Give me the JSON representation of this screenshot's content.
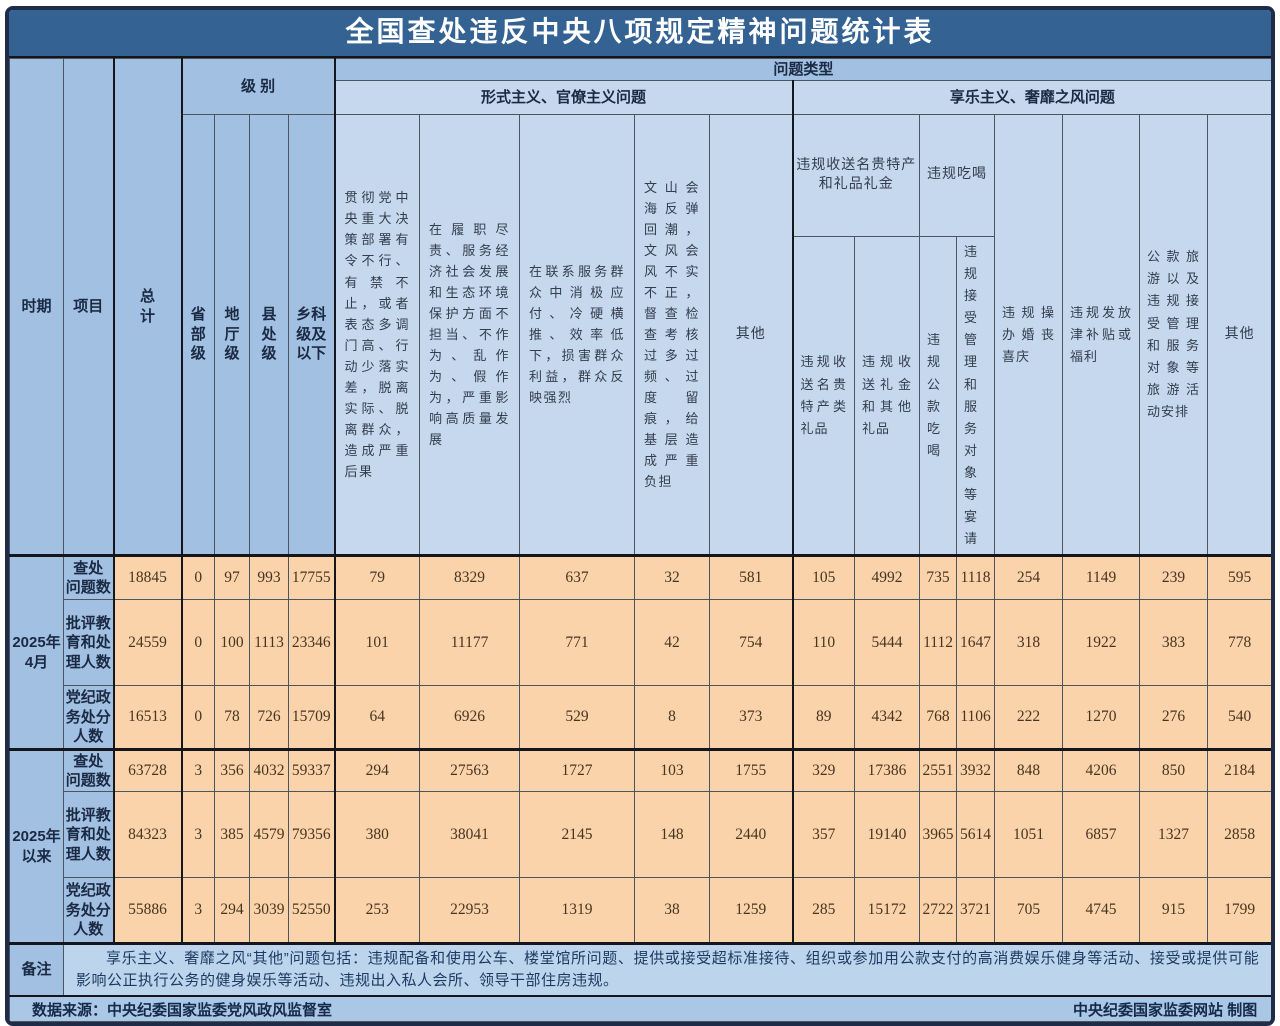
{
  "title": "全国查处违反中央八项规定精神问题统计表",
  "colors": {
    "frame": "#1e2c49",
    "title_bg": "#336293",
    "header_blue": "#a2c0e1",
    "header_light_blue": "#c6d8ed",
    "data_bg": "#fbd3ab",
    "note_bg": "#bdd5ec",
    "source_bg": "#aac7e5"
  },
  "header": {
    "period_label": "时期",
    "item_label": "项目",
    "total_label": "总\n计",
    "level_label": "级 别",
    "problem_type_label": "问题类型",
    "formalism_label": "形式主义、官僚主义问题",
    "hedonism_label": "享乐主义、奢靡之风问题",
    "levels": [
      "省\n部\n级",
      "地\n厅\n级",
      "县\n处\n级",
      "乡科\n级及\n以下"
    ],
    "formalism_cols": [
      "贯彻党中央重大决策部署有令不行、有禁不止，或者表态多调门高、行动少落实差，脱离实际、脱离群众，造成严重后果",
      "在履职尽责、服务经济社会发展和生态环境保护方面不担当、不作为、乱作为、假作为，严重影响高质量发展",
      "在联系服务群众中消极应付、冷硬横推、效率低下，损害群众利益，群众反映强烈",
      "文山会海反弹回潮，文风会风不实不正，督查检查考核过多过频、过度留痕，给基层造成严重负担",
      "其他"
    ],
    "hedonism_cols": {
      "gifts_group": "违规收送名贵特产和礼品礼金",
      "gifts_sub": [
        "违规收送名贵特产类礼品",
        "违规收送礼金和其他礼品"
      ],
      "dining_group": "违规吃喝",
      "dining_sub": [
        "违规公款吃喝",
        "违规接受管理和服务对象等宴请"
      ],
      "wedding": "违规操办婚丧喜庆",
      "allowance": "违规发放津补贴或福利",
      "travel": "公款旅游以及违规接受管理和服务对象等旅游活动安排",
      "other": "其他"
    }
  },
  "body": {
    "periods": [
      {
        "label": "2025年\n4月",
        "rows": [
          {
            "label": "查处\n问题数",
            "values": [
              18845,
              0,
              97,
              993,
              17755,
              79,
              8329,
              637,
              32,
              581,
              105,
              4992,
              735,
              1118,
              254,
              1149,
              239,
              595
            ]
          },
          {
            "label": "批评教\n育和处\n理人数",
            "values": [
              24559,
              0,
              100,
              1113,
              23346,
              101,
              11177,
              771,
              42,
              754,
              110,
              5444,
              1112,
              1647,
              318,
              1922,
              383,
              778
            ]
          },
          {
            "label": "党纪政\n务处分\n人数",
            "values": [
              16513,
              0,
              78,
              726,
              15709,
              64,
              6926,
              529,
              8,
              373,
              89,
              4342,
              768,
              1106,
              222,
              1270,
              276,
              540
            ]
          }
        ]
      },
      {
        "label": "2025年\n以来",
        "rows": [
          {
            "label": "查处\n问题数",
            "values": [
              63728,
              3,
              356,
              4032,
              59337,
              294,
              27563,
              1727,
              103,
              1755,
              329,
              17386,
              2551,
              3932,
              848,
              4206,
              850,
              2184
            ]
          },
          {
            "label": "批评教\n育和处\n理人数",
            "values": [
              84323,
              3,
              385,
              4579,
              79356,
              380,
              38041,
              2145,
              148,
              2440,
              357,
              19140,
              3965,
              5614,
              1051,
              6857,
              1327,
              2858
            ]
          },
          {
            "label": "党纪政\n务处分\n人数",
            "values": [
              55886,
              3,
              294,
              3039,
              52550,
              253,
              22953,
              1319,
              38,
              1259,
              285,
              15172,
              2722,
              3721,
              705,
              4745,
              915,
              1799
            ]
          }
        ]
      }
    ]
  },
  "footer": {
    "note_label": "备注",
    "note": "享乐主义、奢靡之风“其他”问题包括：违规配备和使用公车、楼堂馆所问题、提供或接受超标准接待、组织或参加用公款支付的高消费娱乐健身等活动、接受或提供可能影响公正执行公务的健身娱乐等活动、违规出入私人会所、领导干部住房违规。",
    "source_left": "数据来源：中央纪委国家监委党风政风监督室",
    "source_right": "中央纪委国家监委网站 制图"
  },
  "chart_data": {
    "type": "table",
    "title": "全国查处违反中央八项规定精神问题统计表",
    "row_header_columns": [
      "时期",
      "项目"
    ],
    "columns": [
      "总计",
      "省部级",
      "地厅级",
      "县处级",
      "乡科级及以下",
      "形式主义、官僚主义问题：贯彻党中央重大决策部署有令不行、有禁不止，或者表态多调门高、行动少落实差，脱离实际、脱离群众，造成严重后果",
      "形式主义、官僚主义问题：在履职尽责、服务经济社会发展和生态环境保护方面不担当、不作为、乱作为、假作为，严重影响高质量发展",
      "形式主义、官僚主义问题：在联系服务群众中消极应付、冷硬横推、效率低下，损害群众利益，群众反映强烈",
      "形式主义、官僚主义问题：文山会海反弹回潮，文风会风不实不正，督查检查考核过多过频、过度留痕，给基层造成严重负担",
      "形式主义、官僚主义问题：其他",
      "享乐主义、奢靡之风问题：违规收送名贵特产类礼品",
      "享乐主义、奢靡之风问题：违规收送礼金和其他礼品",
      "享乐主义、奢靡之风问题：违规公款吃喝",
      "享乐主义、奢靡之风问题：违规接受管理和服务对象等宴请",
      "享乐主义、奢靡之风问题：违规操办婚丧喜庆",
      "享乐主义、奢靡之风问题：违规发放津补贴或福利",
      "享乐主义、奢靡之风问题：公款旅游以及违规接受管理和服务对象等旅游活动安排",
      "享乐主义、奢靡之风问题：其他"
    ],
    "rows": [
      [
        "2025年4月",
        "查处问题数",
        18845,
        0,
        97,
        993,
        17755,
        79,
        8329,
        637,
        32,
        581,
        105,
        4992,
        735,
        1118,
        254,
        1149,
        239,
        595
      ],
      [
        "2025年4月",
        "批评教育和处理人数",
        24559,
        0,
        100,
        1113,
        23346,
        101,
        11177,
        771,
        42,
        754,
        110,
        5444,
        1112,
        1647,
        318,
        1922,
        383,
        778
      ],
      [
        "2025年4月",
        "党纪政务处分人数",
        16513,
        0,
        78,
        726,
        15709,
        64,
        6926,
        529,
        8,
        373,
        89,
        4342,
        768,
        1106,
        222,
        1270,
        276,
        540
      ],
      [
        "2025年以来",
        "查处问题数",
        63728,
        3,
        356,
        4032,
        59337,
        294,
        27563,
        1727,
        103,
        1755,
        329,
        17386,
        2551,
        3932,
        848,
        4206,
        850,
        2184
      ],
      [
        "2025年以来",
        "批评教育和处理人数",
        84323,
        3,
        385,
        4579,
        79356,
        380,
        38041,
        2145,
        148,
        2440,
        357,
        19140,
        3965,
        5614,
        1051,
        6857,
        1327,
        2858
      ],
      [
        "2025年以来",
        "党纪政务处分人数",
        55886,
        3,
        294,
        3039,
        52550,
        253,
        22953,
        1319,
        38,
        1259,
        285,
        15172,
        2722,
        3721,
        705,
        4745,
        915,
        1799
      ]
    ]
  }
}
